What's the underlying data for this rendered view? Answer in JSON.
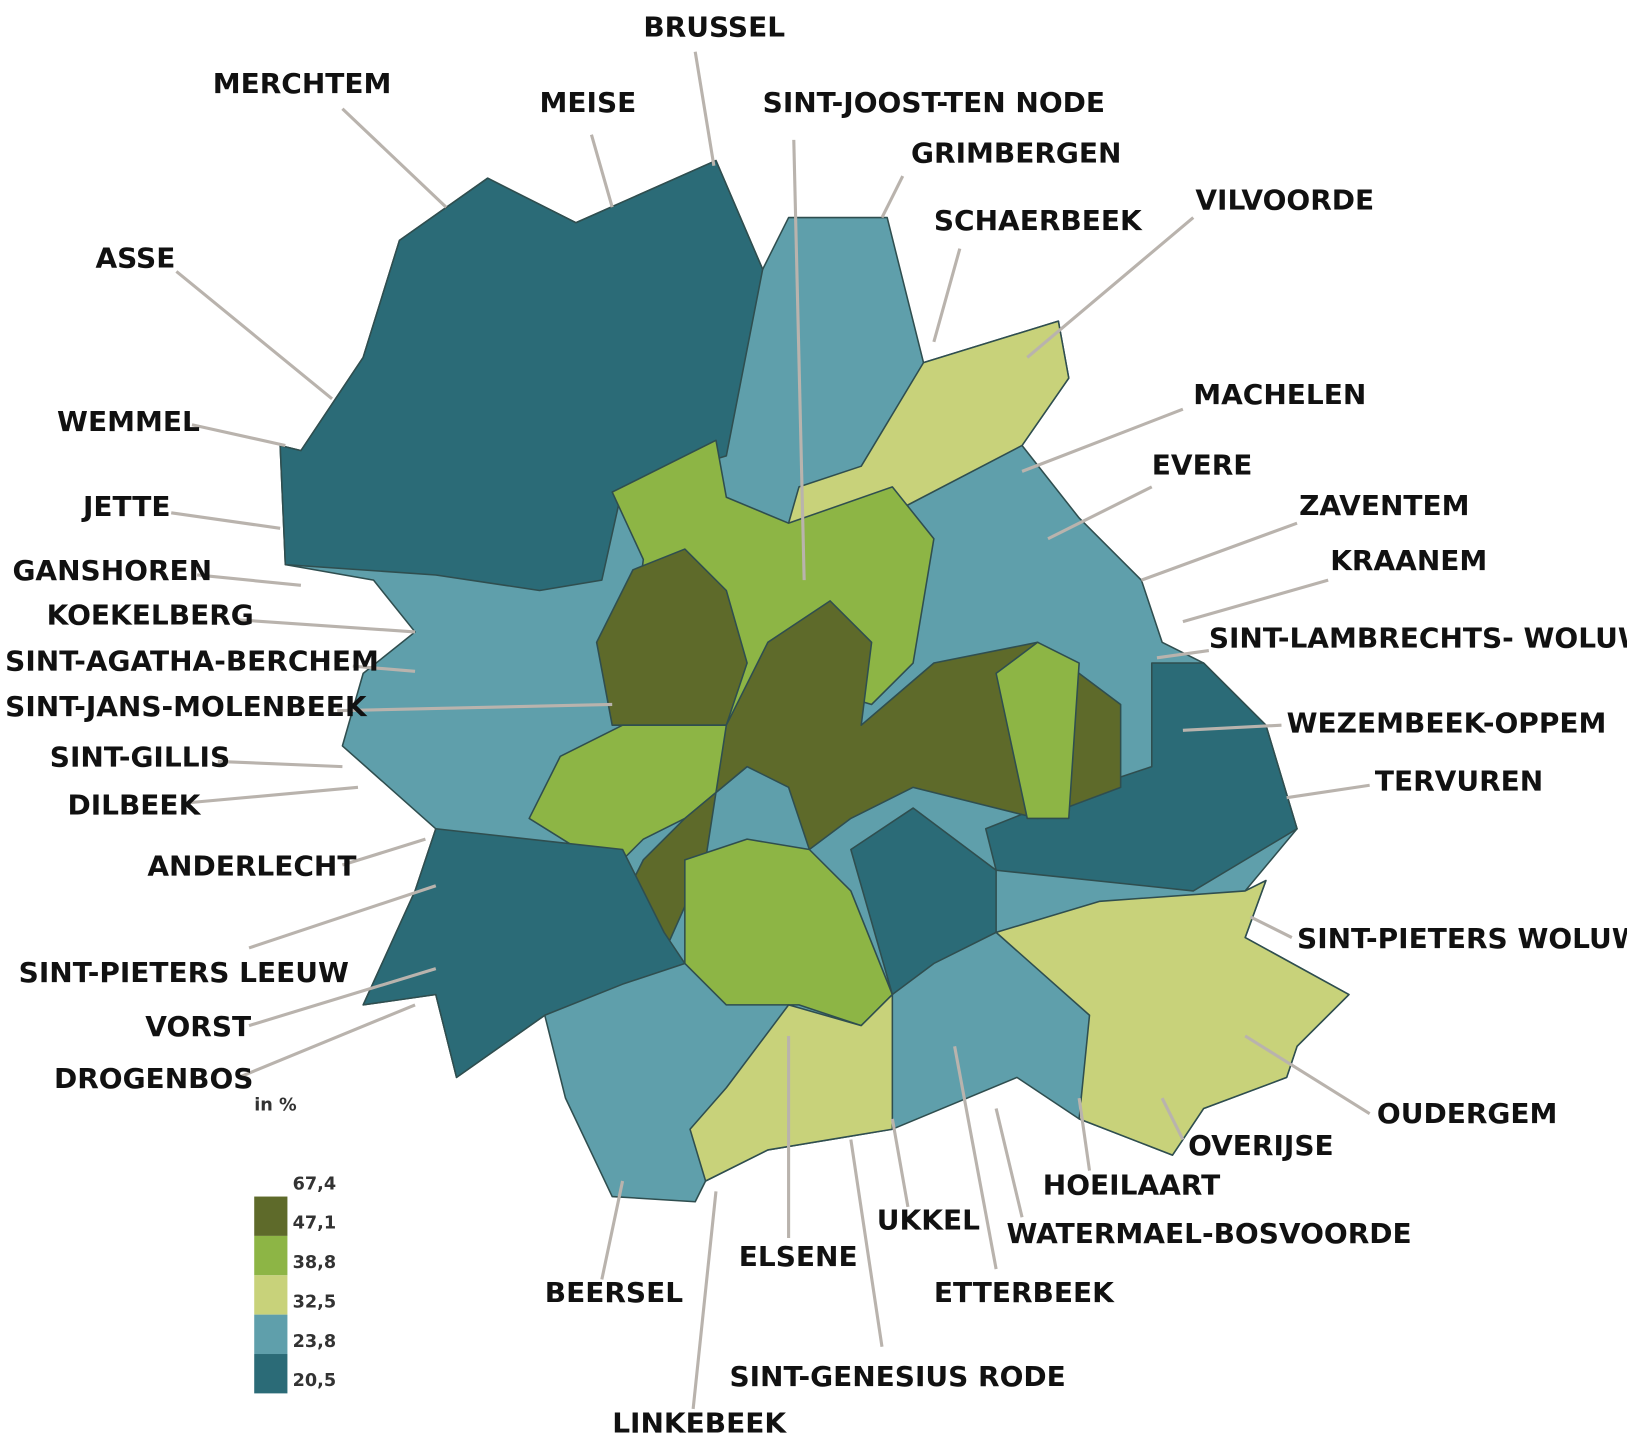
{
  "labels": [
    "BRUSSEL",
    "MERCHTEM",
    "MEISE",
    "SINT-JOOST-TEN NODE",
    "GRIMBERGEN",
    "SCHAERBEEK",
    "VILVOORDE",
    "ASSE",
    "MACHELEN",
    "WEMMEL",
    "EVERE",
    "JETTE",
    "ZAVENTEM",
    "GANSHOREN",
    "KRAANEM",
    "KOEKELBERG",
    "SINT-AGATHA-BERCHEM",
    "SINT-LAMBRECHTS- WOLUWE",
    "SINT-JANS-MOLENBEEK",
    "WEZEMBEEK-OPPEM",
    "SINT-GILLIS",
    "TERVUREN",
    "DILBEEK",
    "ANDERLECHT",
    "SINT-PIETERS WOLUWE",
    "SINT-PIETERS LEEUW",
    "VORST",
    "DROGENBOS",
    "OUDERGEM",
    "OVERIJSE",
    "HOEILAART",
    "UKKEL",
    "WATERMAEL-BOSVOORDE",
    "ELSENE",
    "ETTERBEEK",
    "BEERSEL",
    "SINT-GENESIUS RODE",
    "LINKEBEEK"
  ],
  "legend": {
    "title": "in %",
    "breaks": [
      "67,4",
      "47,1",
      "38,8",
      "32,5",
      "23,8",
      "20,5"
    ]
  }
}
